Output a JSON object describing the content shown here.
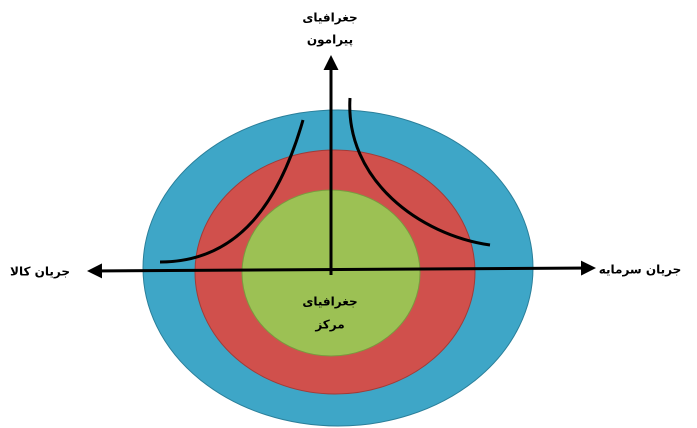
{
  "top_label": {
    "line1": "جغرافیای",
    "line2": "پیرامون"
  },
  "center_label": {
    "line1": "جغرافیای",
    "line2": "مرکز"
  },
  "left_label": "جریان کالا",
  "right_label": "جریان سرمایه"
}
